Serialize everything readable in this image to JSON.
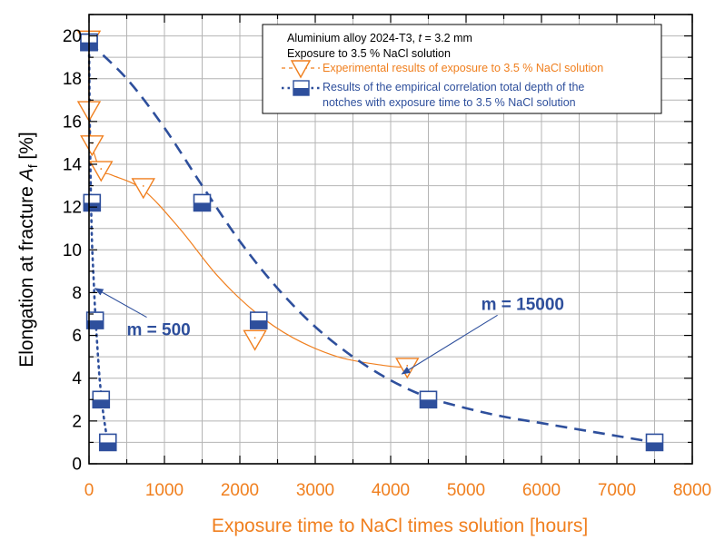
{
  "chart_data": {
    "type": "scatter",
    "xlabel": "Exposure time to NaCl times solution [hours]",
    "ylabel_main": "Elongation at fracture ",
    "ylabel_symbol": "A",
    "ylabel_subscript": "f",
    "ylabel_unit": " [%]",
    "xlim": [
      0,
      8000
    ],
    "ylim": [
      0,
      21
    ],
    "x_ticks": [
      0,
      1000,
      2000,
      3000,
      4000,
      5000,
      6000,
      7000,
      8000
    ],
    "y_ticks": [
      0,
      2,
      4,
      6,
      8,
      10,
      12,
      14,
      16,
      18,
      20
    ],
    "grid": true,
    "legend": {
      "placement": "top-right",
      "title_line1_prefix": "Aluminium alloy 2024-T3, ",
      "title_line1_var": "t",
      "title_line1_suffix": " = 3.2 mm",
      "title_line2": "Exposure to 3.5 % NaCl solution",
      "entry_experimental": "Experimental results of exposure to 3.5 % NaCl solution",
      "entry_empirical_line1": "Results of the empirical correlation total depth of the",
      "entry_empirical_line2": "notches with exposure time to 3.5 % NaCl solution"
    },
    "series": [
      {
        "name": "Experimental results of exposure to 3.5 % NaCl solution",
        "color": "#f07f1e",
        "marker": "triangle-down",
        "points": [
          [
            0,
            19.8
          ],
          [
            0,
            16.5
          ],
          [
            40,
            14.9
          ],
          [
            160,
            13.7
          ],
          [
            720,
            12.9
          ],
          [
            2200,
            5.8
          ],
          [
            4220,
            4.5
          ]
        ],
        "fit_curve": [
          [
            0,
            19.8
          ],
          [
            0,
            16.5
          ],
          [
            40,
            14.9
          ],
          [
            160,
            13.7
          ],
          [
            300,
            13.5
          ],
          [
            720,
            12.8
          ],
          [
            1200,
            11.0
          ],
          [
            1700,
            8.8
          ],
          [
            2200,
            7.1
          ],
          [
            2700,
            5.9
          ],
          [
            3300,
            5.0
          ],
          [
            3900,
            4.6
          ],
          [
            4220,
            4.5
          ]
        ]
      },
      {
        "name": "Results of the empirical correlation total depth of the notches with exposure time to 3.5 % NaCl solution (m = 500)",
        "color": "#2e4f9c",
        "marker": "square-half",
        "line_style": "dotted",
        "points": [
          [
            0,
            19.7
          ],
          [
            40,
            12.2
          ],
          [
            80,
            6.7
          ],
          [
            160,
            3.0
          ],
          [
            250,
            1.0
          ]
        ],
        "fit_curve": [
          [
            0,
            19.7
          ],
          [
            10,
            16
          ],
          [
            25,
            12.5
          ],
          [
            40,
            10.3
          ],
          [
            60,
            8.7
          ],
          [
            80,
            7.2
          ],
          [
            110,
            5.5
          ],
          [
            140,
            4.0
          ],
          [
            180,
            2.6
          ],
          [
            220,
            1.6
          ],
          [
            250,
            1.0
          ]
        ]
      },
      {
        "name": "Results of the empirical correlation total depth of the notches with exposure time to 3.5 % NaCl solution (m = 15000)",
        "color": "#2e4f9c",
        "marker": "square-half",
        "line_style": "dashed",
        "points": [
          [
            0,
            19.7
          ],
          [
            1500,
            12.2
          ],
          [
            2250,
            6.7
          ],
          [
            4500,
            3.0
          ],
          [
            7500,
            1.0
          ]
        ],
        "fit_curve": [
          [
            0,
            19.7
          ],
          [
            500,
            18.0
          ],
          [
            1000,
            15.7
          ],
          [
            1500,
            13.0
          ],
          [
            2000,
            10.4
          ],
          [
            2500,
            8.2
          ],
          [
            3000,
            6.4
          ],
          [
            3500,
            5.0
          ],
          [
            4000,
            3.9
          ],
          [
            4500,
            3.1
          ],
          [
            5000,
            2.6
          ],
          [
            5500,
            2.2
          ],
          [
            6000,
            1.9
          ],
          [
            6500,
            1.6
          ],
          [
            7000,
            1.3
          ],
          [
            7500,
            1.0
          ]
        ]
      }
    ],
    "annotations": [
      {
        "text": "m = 500",
        "color": "#2e4f9c",
        "text_x": 500,
        "text_y": 6.0,
        "target_x": 80,
        "target_y": 8.2
      },
      {
        "text": "m = 15000",
        "color": "#2e4f9c",
        "text_x": 5200,
        "text_y": 7.2,
        "target_x": 4150,
        "target_y": 4.2
      }
    ]
  }
}
